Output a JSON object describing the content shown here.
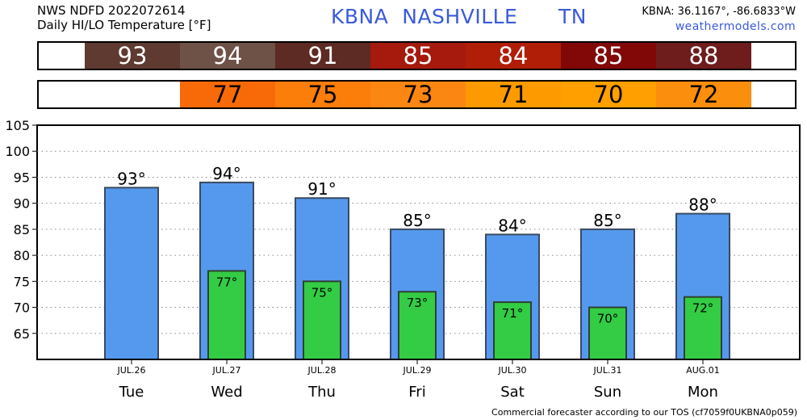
{
  "header": {
    "product_line1": "NWS NDFD 2022072614",
    "product_line2": "Daily HI/LO Temperature [°F]",
    "station_title": "KBNA  NASHVILLE      TN",
    "coords": "KBNA: 36.1167°, -86.6833°W",
    "site": "weathermodels.com"
  },
  "strips": {
    "hi": [
      {
        "text": "93",
        "color": "#5e3a30"
      },
      {
        "text": "94",
        "color": "#6e5248"
      },
      {
        "text": "91",
        "color": "#5e2a24"
      },
      {
        "text": "85",
        "color": "#a51a0c"
      },
      {
        "text": "84",
        "color": "#b01e08"
      },
      {
        "text": "85",
        "color": "#820808"
      },
      {
        "text": "88",
        "color": "#6e1c1c"
      }
    ],
    "lo": [
      {
        "text": "77",
        "color": "#f86a08"
      },
      {
        "text": "75",
        "color": "#fb7d0a"
      },
      {
        "text": "73",
        "color": "#fc8612"
      },
      {
        "text": "71",
        "color": "#fd9a00"
      },
      {
        "text": "70",
        "color": "#ffa000"
      },
      {
        "text": "72",
        "color": "#fb8e0c"
      }
    ]
  },
  "chart_data": {
    "type": "bar",
    "categories": [
      "Tue",
      "Wed",
      "Thu",
      "Fri",
      "Sat",
      "Sun",
      "Mon"
    ],
    "dates": [
      "JUL.26",
      "JUL.27",
      "JUL.28",
      "JUL.29",
      "JUL.30",
      "JUL.31",
      "AUG.01"
    ],
    "series": [
      {
        "values": [
          93,
          94,
          91,
          85,
          84,
          85,
          88
        ],
        "labels": [
          "93°",
          "94°",
          "91°",
          "85°",
          "84°",
          "85°",
          "88°"
        ],
        "color": "#5599ee"
      },
      {
        "values": [
          null,
          77,
          75,
          73,
          71,
          70,
          72
        ],
        "labels": [
          "",
          "77°",
          "75°",
          "73°",
          "71°",
          "70°",
          "72°"
        ],
        "color": "#33cc44"
      }
    ],
    "ylim": [
      60,
      105
    ],
    "yticks": [
      "65",
      "70",
      "75",
      "80",
      "85",
      "90",
      "95",
      "100",
      "105"
    ],
    "grid": true
  },
  "footer": "Commercial forecaster according to our TOS (cf7059f0UKBNA0p059)"
}
